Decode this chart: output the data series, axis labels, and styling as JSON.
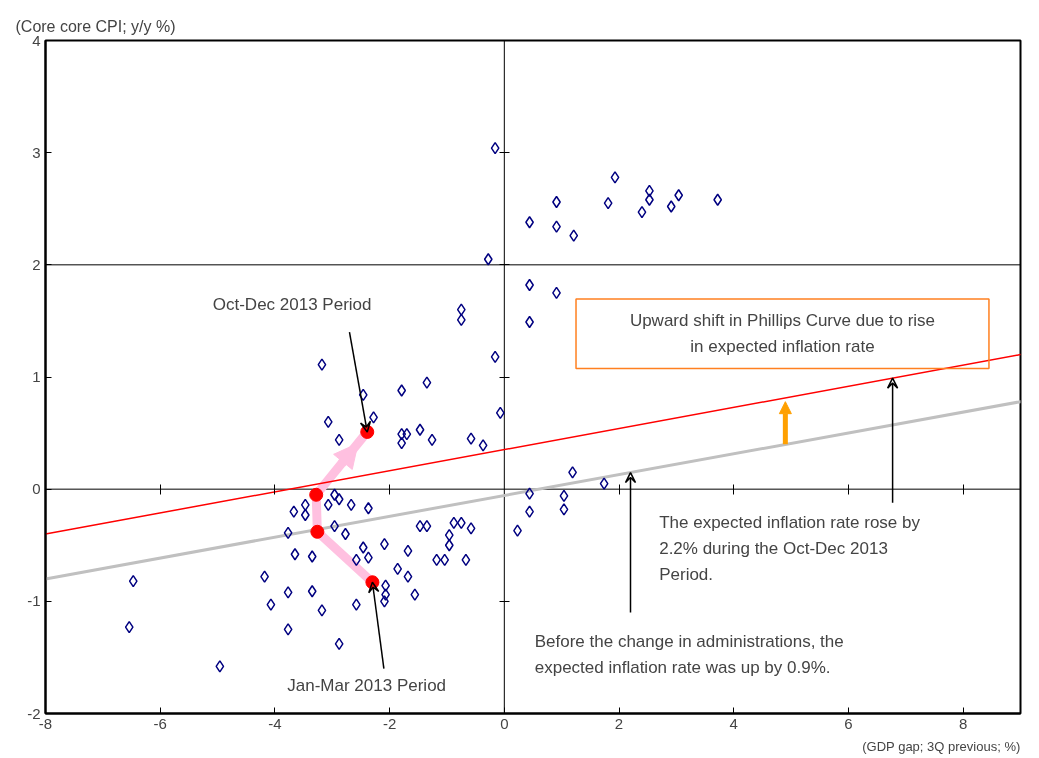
{
  "chart_data": {
    "type": "scatter",
    "xlabel": "(GDP gap; 3Q previous; %)",
    "ylabel": "(Core core CPI; y/y %)",
    "xlim": [
      -8,
      9
    ],
    "ylim": [
      -2,
      4
    ],
    "xticks": [
      -8,
      -6,
      -4,
      -2,
      0,
      2,
      4,
      6,
      8
    ],
    "yticks": [
      -2,
      -1,
      0,
      1,
      2,
      3,
      4
    ],
    "grid": false,
    "series": [
      {
        "marker": "diamond",
        "color": "#000080",
        "x": [
          -0.16,
          0.44,
          0.91,
          0.91,
          1.21,
          1.81,
          1.93,
          2.4,
          2.53,
          2.53,
          2.91,
          3.04,
          3.72,
          -0.28,
          0.44,
          0.91,
          0.44,
          -0.16,
          -0.07,
          -0.58,
          -0.37,
          1.19,
          1.74,
          0.44,
          1.04,
          0.44,
          1.04,
          0.23,
          -0.75,
          -0.75,
          -3.18,
          -2.46,
          -1.79,
          -1.35,
          -3.07,
          -2.28,
          -2.88,
          -1.79,
          -1.79,
          -1.7,
          -1.47,
          -1.26,
          -2.96,
          -2.88,
          -3.07,
          -2.67,
          -2.37,
          -3.47,
          -3.67,
          -3.47,
          -3.77,
          -2.96,
          -2.77,
          -2.46,
          -2.09,
          -3.65,
          -3.35,
          -2.58,
          -2.37,
          -1.68,
          -1.47,
          -1.35,
          -0.96,
          -0.88,
          -0.75,
          -0.58,
          -0.96,
          -1.18,
          -1.04,
          -0.67,
          -1.86,
          -1.68,
          -2.07,
          -2.07,
          -1.56,
          -3.77,
          -3.35,
          -3.18,
          -2.58,
          -3.77,
          -2.88,
          -2.09,
          -6.47,
          -4.18,
          -4.07,
          -6.54,
          -4.96
        ],
        "values": [
          3.04,
          2.38,
          2.56,
          2.34,
          2.26,
          2.55,
          2.78,
          2.47,
          2.66,
          2.58,
          2.52,
          2.62,
          2.58,
          2.05,
          1.82,
          1.75,
          1.49,
          1.18,
          0.68,
          0.45,
          0.39,
          0.15,
          0.05,
          -0.04,
          -0.06,
          -0.2,
          -0.18,
          -0.37,
          1.6,
          1.51,
          1.11,
          0.84,
          0.88,
          0.95,
          0.6,
          0.64,
          0.44,
          0.49,
          0.41,
          0.49,
          0.53,
          0.44,
          -0.05,
          -0.09,
          -0.14,
          -0.14,
          -0.17,
          -0.14,
          -0.2,
          -0.23,
          -0.39,
          -0.33,
          -0.4,
          -0.52,
          -0.49,
          -0.58,
          -0.6,
          -0.63,
          -0.61,
          -0.55,
          -0.33,
          -0.33,
          -0.41,
          -0.3,
          -0.3,
          -0.35,
          -0.5,
          -0.63,
          -0.63,
          -0.63,
          -0.71,
          -0.78,
          -0.86,
          -0.94,
          -0.94,
          -0.92,
          -0.91,
          -1.08,
          -1.03,
          -1.25,
          -1.38,
          -1.0,
          -0.82,
          -0.78,
          -1.03,
          -1.23,
          -1.58
        ]
      },
      {
        "marker": "circle",
        "color": "#ff0000",
        "x": [
          -2.3,
          -3.26,
          -3.28,
          -2.39
        ],
        "values": [
          -0.83,
          -0.38,
          -0.05,
          0.51
        ]
      },
      {
        "type": "line",
        "color": "#ffc0e0",
        "x": [
          -2.3,
          -3.26,
          -3.28,
          -2.39
        ],
        "values": [
          -0.83,
          -0.38,
          -0.05,
          0.51
        ]
      },
      {
        "type": "line",
        "color": "#ff0000",
        "x": [
          -8,
          9
        ],
        "values": [
          -0.4,
          1.2
        ]
      },
      {
        "type": "line",
        "color": "#c0c0c0",
        "x": [
          -8,
          9
        ],
        "values": [
          -0.8,
          0.78
        ]
      }
    ],
    "ref_lines": [
      {
        "axis": "y",
        "value": 2,
        "label": null,
        "color": "#000000"
      },
      {
        "axis": "y",
        "value": 0,
        "label": null,
        "color": "#000000"
      },
      {
        "axis": "x",
        "value": 0,
        "label": null,
        "color": "#000000"
      }
    ],
    "annotations": [
      {
        "text": "Oct-Dec 2013 Period",
        "x": -2.39,
        "y": 0.51
      },
      {
        "text": "Jan-Mar 2013 Period",
        "x": -2.3,
        "y": -0.83
      },
      "Upward shift in Phillips Curve due to rise\nin expected inflation rate",
      {
        "text": "The expected inflation rate rose by\n2.2% during the Oct-Dec 2013\nPeriod.",
        "x": 6.77,
        "y": 0.99
      },
      {
        "text": "Before the change in administrations, the\nexpected inflation rate was up by 0.9%.",
        "x": 2.2,
        "y": 0.148
      }
    ]
  }
}
